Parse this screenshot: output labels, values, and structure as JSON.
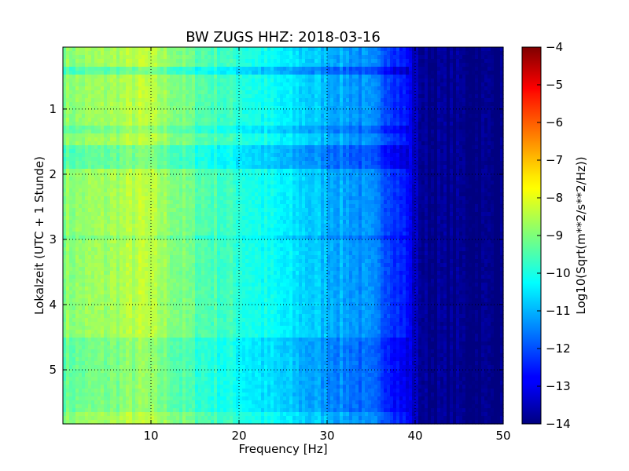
{
  "chart_data": {
    "type": "heatmap",
    "title": "BW ZUGS HHZ: 2018-03-16",
    "xlabel": "Frequency [Hz]",
    "ylabel": "Lokalzeit (UTC + 1 Stunde)",
    "xlim": [
      0,
      50
    ],
    "ylim": [
      5.83,
      0.05
    ],
    "x_ticks": [
      10,
      20,
      30,
      40,
      50
    ],
    "y_ticks": [
      1,
      2,
      3,
      4,
      5
    ],
    "y_inverted": true,
    "grid": true,
    "colormap": "jet",
    "colorbar": {
      "label": "Log10(Sqrt(m**2/s**2/Hz))",
      "range": [
        -14,
        -4
      ],
      "ticks": [
        -4,
        -5,
        -6,
        -7,
        -8,
        -9,
        -10,
        -11,
        -12,
        -13,
        -14
      ]
    },
    "frequency_profile": {
      "frequency_hz": [
        0,
        5,
        9,
        12,
        15,
        20,
        25,
        30,
        33,
        35,
        37,
        39,
        40,
        41,
        50
      ],
      "log10_amplitude": [
        -8.9,
        -8.7,
        -8.4,
        -8.8,
        -9.3,
        -9.8,
        -10.4,
        -10.9,
        -11.2,
        -11.5,
        -11.9,
        -12.6,
        -13.4,
        -13.85,
        -13.95
      ]
    },
    "time_bands": [
      {
        "hours": [
          0.3,
          0.45
        ],
        "offset": -0.7
      },
      {
        "hours": [
          1.2,
          1.35
        ],
        "offset": -0.4
      },
      {
        "hours": [
          1.5,
          1.9
        ],
        "offset": -0.6
      },
      {
        "hours": [
          2.9,
          3.0
        ],
        "offset": -0.3
      },
      {
        "hours": [
          4.5,
          5.6
        ],
        "offset": -0.4
      }
    ]
  }
}
